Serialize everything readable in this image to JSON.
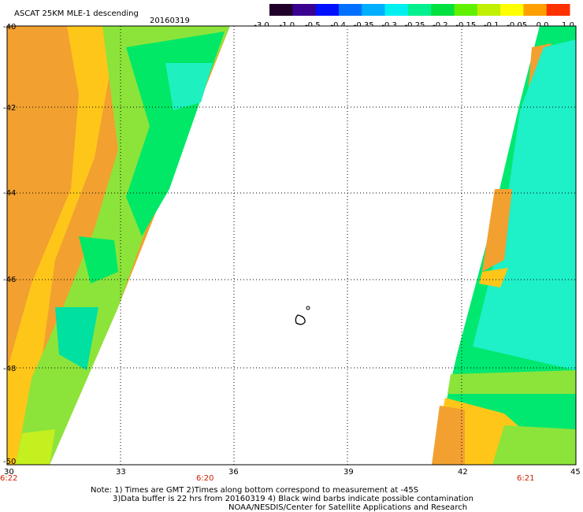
{
  "header": {
    "title": "ASCAT 25KM MLE-1 descending",
    "date": "20160319"
  },
  "colorbar": {
    "labels": [
      "-3.0",
      "-1.0",
      "-0.5",
      "-0.4",
      "-0.35",
      "-0.3",
      "-0.25",
      "-0.2",
      "-0.15",
      "-0.1",
      "-0.05",
      "0.0",
      "1.0"
    ],
    "colors": [
      "#200028",
      "#3a0090",
      "#0010ff",
      "#0070ff",
      "#00b0ff",
      "#00f0f0",
      "#00f090",
      "#00e040",
      "#60f000",
      "#c0f000",
      "#ffff00",
      "#ffa000",
      "#ff3000"
    ]
  },
  "axes": {
    "lat_labels": [
      "-40",
      "-42",
      "-44",
      "-46",
      "-48",
      "-50"
    ],
    "lon_labels": [
      "30",
      "33",
      "36",
      "39",
      "42",
      "45"
    ]
  },
  "times": [
    "6:22",
    "6:20",
    "6:21"
  ],
  "notes": {
    "line1": "Note: 1) Times are GMT 2)Times along bottom correspond to measurement at -45S",
    "line2": "3)Data buffer is 22 hrs from 20160319 4) Black wind barbs indicate possible contamination",
    "line3": "NOAA/NESDIS/Center for Satellite Applications and Research"
  }
}
